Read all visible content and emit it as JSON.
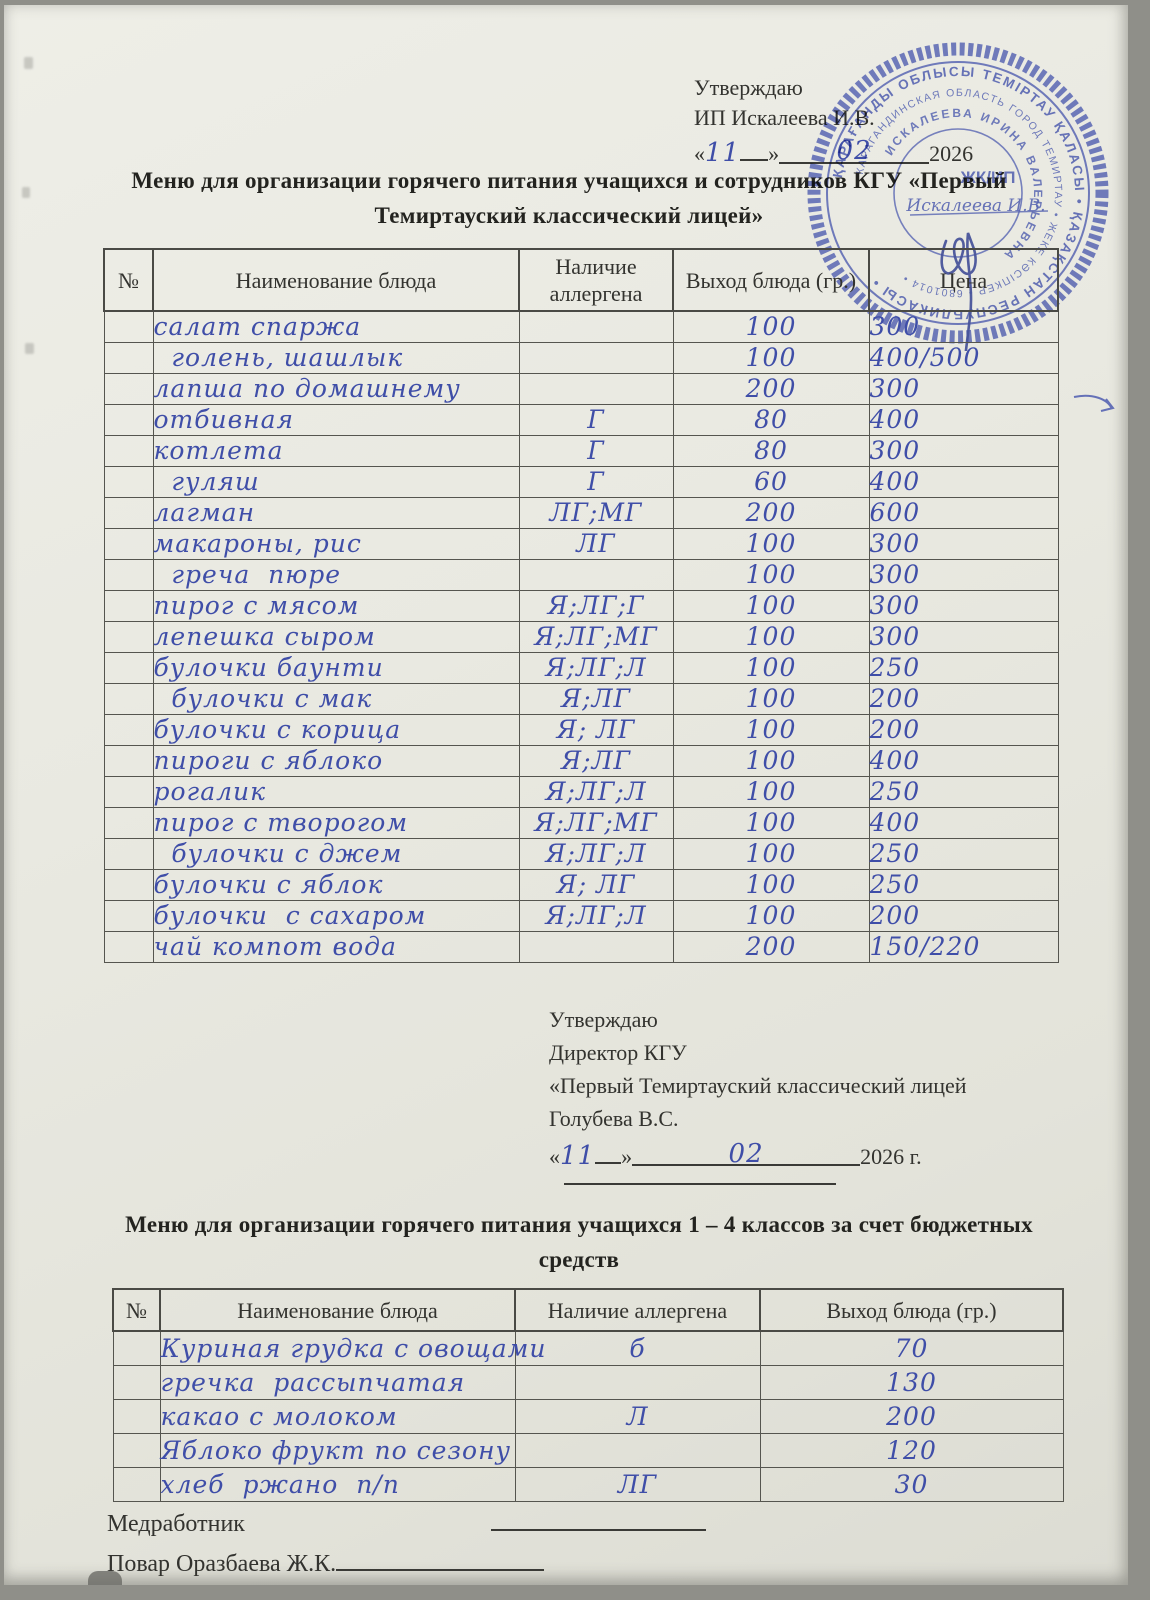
{
  "approval_top": {
    "line1": "Утверждаю",
    "line2": "ИП Искалеева И.В.",
    "quote_open": "«",
    "day": "11",
    "quote_close": "»",
    "month": "02",
    "year": "2026"
  },
  "title_main": "Меню для организации горячего питания учащихся и сотрудников КГУ «Первый Темиртауский классический лицей»",
  "stamp": {
    "ring_outer": "ҚАРАҒАНДЫ ОБЛЫСЫ ТЕМІРТАУ ҚАЛАСЫ • ҚАЗАҚСТАН РЕСПУБЛИКАСЫ •",
    "ring_middle": "КАРАГАНДИНСКАЯ ОБЛАСТЬ ГОРОД ТЕМИРТАУ • ЖЕКЕ КӘСІПКЕР • 6801014 •",
    "ring_inner": "ИСКАЛЕЕВА ИРИНА ВАЛЕРЬЕВНА",
    "center_line1": "ЖК/ИП",
    "center_line2": "Искалеева И.В."
  },
  "table1": {
    "headers": [
      "№",
      "Наименование блюда",
      "Наличие аллергена",
      "Выход блюда (гр.)",
      "Цена"
    ],
    "rows": [
      {
        "name": "салат спаржа",
        "allergen": "",
        "weight": "100",
        "price": "300"
      },
      {
        "name": "  голень, шашлык",
        "allergen": "",
        "weight": "100",
        "price": "400/500"
      },
      {
        "name": "лапша по домашнему",
        "allergen": "",
        "weight": "200",
        "price": "300"
      },
      {
        "name": "отбивная",
        "allergen": "Г",
        "weight": "80",
        "price": "400"
      },
      {
        "name": "котлета",
        "allergen": "Г",
        "weight": "80",
        "price": "300"
      },
      {
        "name": "  гуляш",
        "allergen": "Г",
        "weight": "60",
        "price": "400"
      },
      {
        "name": "лагман",
        "allergen": "ЛГ;МГ",
        "weight": "200",
        "price": "600"
      },
      {
        "name": "макароны, рис",
        "allergen": "ЛГ",
        "weight": "100",
        "price": "300"
      },
      {
        "name": "  греча  пюре",
        "allergen": "",
        "weight": "100",
        "price": "300"
      },
      {
        "name": "пирог с мясом",
        "allergen": "Я;ЛГ;Г",
        "weight": "100",
        "price": "300"
      },
      {
        "name": "лепешка сыром",
        "allergen": "Я;ЛГ;МГ",
        "weight": "100",
        "price": "300"
      },
      {
        "name": "булочки баунти",
        "allergen": "Я;ЛГ;Л",
        "weight": "100",
        "price": "250"
      },
      {
        "name": "  булочки с мак",
        "allergen": "Я;ЛГ",
        "weight": "100",
        "price": "200"
      },
      {
        "name": "булочки с корица",
        "allergen": "Я; ЛГ",
        "weight": "100",
        "price": "200"
      },
      {
        "name": "пироги с яблоко",
        "allergen": "Я;ЛГ",
        "weight": "100",
        "price": "400"
      },
      {
        "name": "рогалик",
        "allergen": "Я;ЛГ;Л",
        "weight": "100",
        "price": "250"
      },
      {
        "name": "пирог с творогом",
        "allergen": "Я;ЛГ;МГ",
        "weight": "100",
        "price": "400"
      },
      {
        "name": "  булочки с джем",
        "allergen": "Я;ЛГ;Л",
        "weight": "100",
        "price": "250"
      },
      {
        "name": "булочки с яблок",
        "allergen": "Я; ЛГ",
        "weight": "100",
        "price": "250"
      },
      {
        "name": "булочки  с сахаром",
        "allergen": "Я;ЛГ;Л",
        "weight": "100",
        "price": "200"
      },
      {
        "name": "чай компот вода",
        "allergen": "",
        "weight": "200",
        "price": "150/220"
      }
    ]
  },
  "approval_mid": {
    "line1": "Утверждаю",
    "line2": "Директор КГУ",
    "line3": "«Первый Темиртауский классический лицей",
    "line4": "Голубева В.С.",
    "quote_open": "«",
    "day": "11",
    "quote_close": "»",
    "month": "02",
    "year": "2026 г."
  },
  "title_budget": "Меню для организации горячего питания учащихся 1 – 4 классов за счет бюджетных средств",
  "table2": {
    "headers": [
      "№",
      "Наименование блюда",
      "Наличие аллергена",
      "Выход блюда (гр.)"
    ],
    "rows": [
      {
        "name": "Куриная грудка с овощами",
        "allergen": "б",
        "weight": "70"
      },
      {
        "name": "гречка  рассыпчатая",
        "allergen": "",
        "weight": "130"
      },
      {
        "name": "какао с молоком",
        "allergen": "Л",
        "weight": "200"
      },
      {
        "name": "Яблоко фрукт по сезону",
        "allergen": "",
        "weight": "120"
      },
      {
        "name": "хлеб  ржано  п/п",
        "allergen": "ЛГ",
        "weight": "30"
      }
    ]
  },
  "footer": {
    "medworker_label": "Медработник",
    "cook_label": "Повар Оразбаева Ж.К."
  }
}
